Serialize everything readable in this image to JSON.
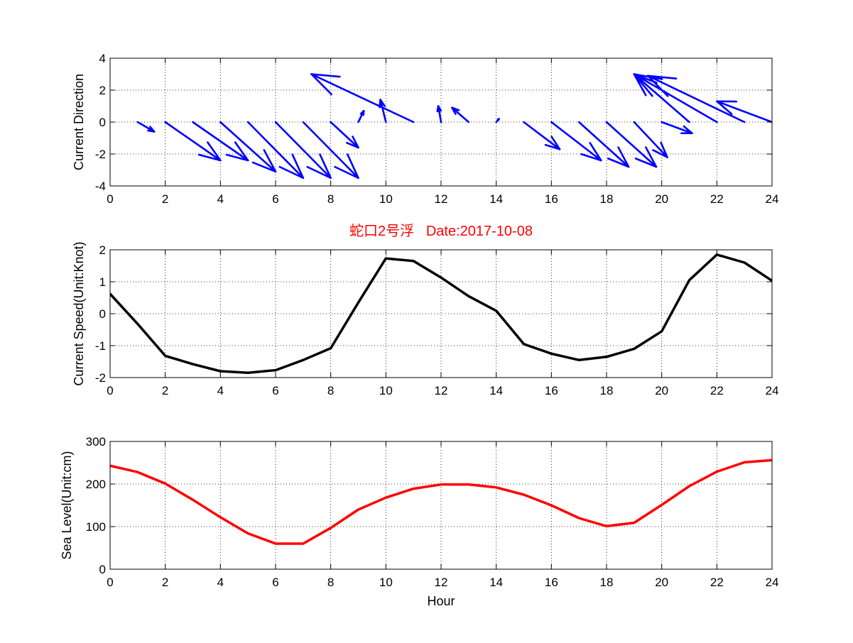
{
  "colors": {
    "arrows": "#0000ff",
    "speed": "#000000",
    "level": "#ff0000",
    "title": "#ff0000"
  },
  "chart_data": [
    {
      "type": "quiver",
      "ylabel": "Current Direction",
      "xlabel": "",
      "xlim": [
        0,
        24
      ],
      "ylim": [
        -4,
        4
      ],
      "x_ticks": [
        "0",
        "2",
        "4",
        "6",
        "8",
        "10",
        "12",
        "14",
        "16",
        "18",
        "20",
        "22",
        "24"
      ],
      "y_ticks": [
        "4",
        "2",
        "0",
        "-2",
        "-4"
      ],
      "grid": true,
      "arrows": [
        {
          "x": 1,
          "u": 0.6,
          "v": -0.6
        },
        {
          "x": 2,
          "u": 2.0,
          "v": -2.4
        },
        {
          "x": 3,
          "u": 2.0,
          "v": -2.4
        },
        {
          "x": 4,
          "u": 2.0,
          "v": -3.1
        },
        {
          "x": 5,
          "u": 2.0,
          "v": -3.5
        },
        {
          "x": 6,
          "u": 2.0,
          "v": -3.5
        },
        {
          "x": 7,
          "u": 2.0,
          "v": -3.5
        },
        {
          "x": 8,
          "u": 1.0,
          "v": -1.6
        },
        {
          "x": 9,
          "u": 0.2,
          "v": 0.7
        },
        {
          "x": 10,
          "u": -0.2,
          "v": 1.4
        },
        {
          "x": 11,
          "u": -3.7,
          "v": 3.0
        },
        {
          "x": 12,
          "u": -0.1,
          "v": 1.0
        },
        {
          "x": 13,
          "u": -0.6,
          "v": 0.9
        },
        {
          "x": 14,
          "u": 0.1,
          "v": 0.2
        },
        {
          "x": 15,
          "u": 1.3,
          "v": -1.7
        },
        {
          "x": 16,
          "u": 1.8,
          "v": -2.4
        },
        {
          "x": 17,
          "u": 1.8,
          "v": -2.8
        },
        {
          "x": 18,
          "u": 1.8,
          "v": -2.8
        },
        {
          "x": 19,
          "u": 1.2,
          "v": -2.2
        },
        {
          "x": 20,
          "u": 1.1,
          "v": -0.7
        },
        {
          "x": 21,
          "u": -2.0,
          "v": 3.0
        },
        {
          "x": 22,
          "u": -3.0,
          "v": 3.0
        },
        {
          "x": 23,
          "u": -3.5,
          "v": 2.9
        },
        {
          "x": 24,
          "u": -2.0,
          "v": 1.3
        }
      ]
    },
    {
      "type": "line",
      "title": "蛇口2号浮   Date:2017-10-08",
      "ylabel": "Current Speed(Unit:Knot)",
      "xlabel": "",
      "xlim": [
        0,
        24
      ],
      "ylim": [
        -2,
        2
      ],
      "x_ticks": [
        "0",
        "2",
        "4",
        "6",
        "8",
        "10",
        "12",
        "14",
        "16",
        "18",
        "20",
        "22",
        "24"
      ],
      "y_ticks": [
        "2",
        "1",
        "0",
        "-1",
        "-2"
      ],
      "grid": true,
      "x": [
        0,
        1,
        2,
        3,
        4,
        5,
        6,
        7,
        8,
        9,
        10,
        11,
        12,
        13,
        14,
        15,
        16,
        17,
        18,
        19,
        20,
        21,
        22,
        23,
        24
      ],
      "values": [
        0.62,
        -0.32,
        -1.32,
        -1.58,
        -1.8,
        -1.85,
        -1.77,
        -1.45,
        -1.08,
        0.35,
        1.73,
        1.65,
        1.13,
        0.55,
        0.09,
        -0.95,
        -1.25,
        -1.45,
        -1.35,
        -1.1,
        -0.55,
        1.05,
        1.85,
        1.6,
        1.03
      ]
    },
    {
      "type": "line",
      "ylabel": "Sea Level(Unit:cm)",
      "xlabel": "Hour",
      "xlim": [
        0,
        24
      ],
      "ylim": [
        0,
        300
      ],
      "x_ticks": [
        "0",
        "2",
        "4",
        "6",
        "8",
        "10",
        "12",
        "14",
        "16",
        "18",
        "20",
        "22",
        "24"
      ],
      "y_ticks": [
        "300",
        "200",
        "100",
        "0"
      ],
      "grid": true,
      "x": [
        0,
        1,
        2,
        3,
        4,
        5,
        6,
        7,
        8,
        9,
        10,
        11,
        12,
        13,
        14,
        15,
        16,
        17,
        18,
        19,
        20,
        21,
        22,
        23,
        24
      ],
      "values": [
        243,
        228,
        201,
        163,
        122,
        84,
        60,
        60,
        97,
        140,
        168,
        189,
        199,
        199,
        192,
        175,
        150,
        120,
        101,
        109,
        151,
        195,
        229,
        251,
        256
      ]
    }
  ]
}
